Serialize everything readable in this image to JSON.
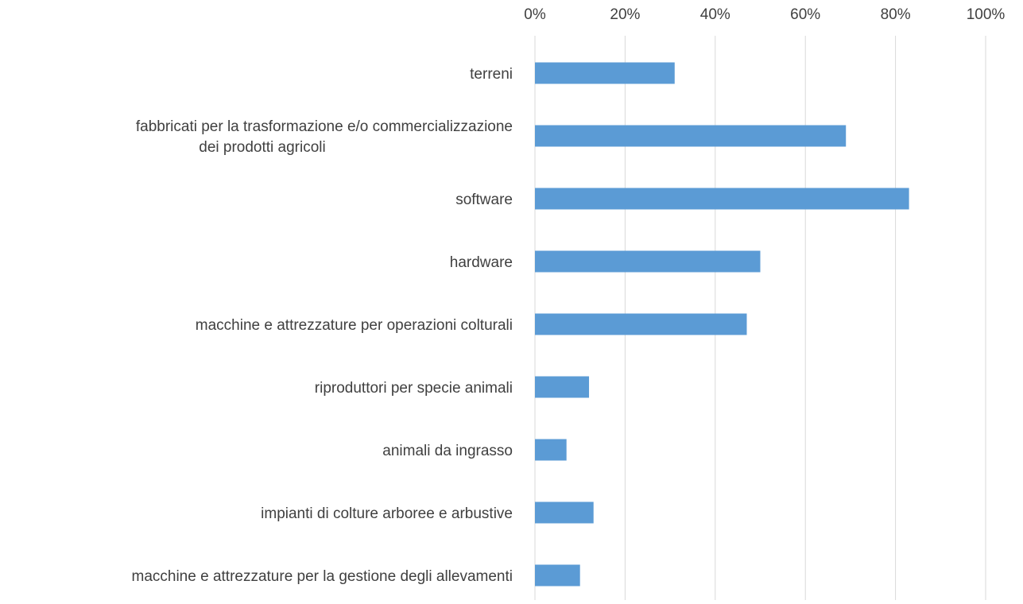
{
  "chart_data": {
    "type": "bar",
    "orientation": "horizontal",
    "title": "",
    "categories": [
      "terreni",
      "fabbricati per la trasformazione e/o commercializzazione dei prodotti agricoli",
      "software",
      "hardware",
      "macchine e attrezzature per operazioni colturali",
      "riproduttori per specie animali",
      "animali da ingrasso",
      "impianti di colture arboree e arbustive",
      "macchine e attrezzature per la gestione degli allevamenti"
    ],
    "category_lines": [
      [
        "terreni"
      ],
      [
        "fabbricati per la trasformazione e/o commercializzazione",
        "dei prodotti agricoli"
      ],
      [
        "software"
      ],
      [
        "hardware"
      ],
      [
        "macchine e attrezzature per operazioni colturali"
      ],
      [
        "riproduttori per specie animali"
      ],
      [
        "animali da ingrasso"
      ],
      [
        "impianti di colture arboree e arbustive"
      ],
      [
        "macchine e attrezzature per la gestione degli allevamenti"
      ]
    ],
    "values": [
      31,
      69,
      83,
      50,
      47,
      12,
      7,
      13,
      10
    ],
    "xlim": [
      0,
      100
    ],
    "x_ticks": [
      "0%",
      "20%",
      "40%",
      "60%",
      "80%",
      "100%"
    ],
    "x_axis_position": "top",
    "xlabel": "",
    "ylabel": "",
    "grid": true,
    "bar_color": "#5b9bd5",
    "grid_color": "#d9d9d9"
  }
}
